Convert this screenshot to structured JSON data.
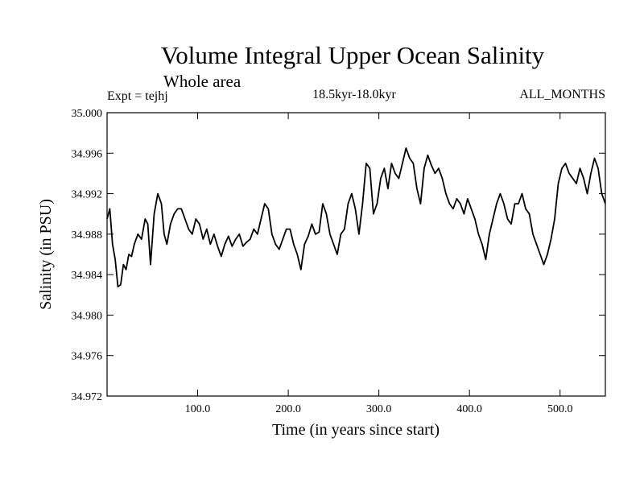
{
  "chart_data": {
    "type": "line",
    "title": "Volume Integral Upper Ocean Salinity",
    "subtitle": "Whole area",
    "left_label": "Expt = tejhj",
    "center_label": "18.5kyr-18.0kyr",
    "right_label": "ALL_MONTHS",
    "xlabel": "Time (in years since start)",
    "ylabel": "Salinity (in PSU)",
    "xlim": [
      0,
      550
    ],
    "ylim": [
      34.972,
      35.0
    ],
    "xticks": [
      100,
      200,
      300,
      400,
      500
    ],
    "xtick_labels": [
      "100.0",
      "200.0",
      "300.0",
      "400.0",
      "500.0"
    ],
    "yticks": [
      34.972,
      34.976,
      34.98,
      34.984,
      34.988,
      34.992,
      34.996,
      35.0
    ],
    "ytick_labels": [
      "34.972",
      "34.976",
      "34.980",
      "34.984",
      "34.988",
      "34.992",
      "34.996",
      "35.000"
    ],
    "grid": false,
    "series": [
      {
        "name": "salinity",
        "x": [
          0,
          3,
          6,
          9,
          12,
          15,
          18,
          21,
          24,
          27,
          30,
          34,
          38,
          42,
          45,
          48,
          52,
          56,
          60,
          63,
          66,
          70,
          74,
          78,
          82,
          86,
          90,
          94,
          98,
          102,
          106,
          110,
          114,
          118,
          122,
          126,
          130,
          134,
          138,
          142,
          146,
          150,
          154,
          158,
          162,
          166,
          170,
          174,
          178,
          182,
          186,
          190,
          194,
          198,
          202,
          206,
          210,
          214,
          218,
          222,
          226,
          230,
          234,
          238,
          242,
          246,
          250,
          254,
          258,
          262,
          266,
          270,
          274,
          278,
          282,
          286,
          290,
          294,
          298,
          302,
          306,
          310,
          314,
          318,
          322,
          326,
          330,
          334,
          338,
          342,
          346,
          350,
          354,
          358,
          362,
          366,
          370,
          374,
          378,
          382,
          386,
          390,
          394,
          398,
          402,
          406,
          410,
          414,
          418,
          422,
          426,
          430,
          434,
          438,
          442,
          446,
          450,
          454,
          458,
          462,
          466,
          470,
          474,
          478,
          482,
          486,
          490,
          494,
          498,
          502,
          506,
          510,
          514,
          518,
          522,
          526,
          530,
          534,
          538,
          542,
          546,
          550
        ],
        "values": [
          34.9895,
          34.9905,
          34.987,
          34.9855,
          34.9828,
          34.983,
          34.985,
          34.9845,
          34.986,
          34.9858,
          34.987,
          34.988,
          34.9875,
          34.9895,
          34.989,
          34.985,
          34.99,
          34.992,
          34.991,
          34.988,
          34.987,
          34.989,
          34.99,
          34.9905,
          34.9905,
          34.9895,
          34.9885,
          34.988,
          34.9895,
          34.989,
          34.9875,
          34.9885,
          34.987,
          34.988,
          34.9868,
          34.9858,
          34.987,
          34.9878,
          34.9868,
          34.9875,
          34.988,
          34.9868,
          34.9872,
          34.9875,
          34.9885,
          34.988,
          34.9895,
          34.991,
          34.9905,
          34.988,
          34.987,
          34.9865,
          34.9875,
          34.9885,
          34.9885,
          34.987,
          34.986,
          34.9845,
          34.987,
          34.9878,
          34.989,
          34.988,
          34.9882,
          34.991,
          34.99,
          34.988,
          34.987,
          34.986,
          34.988,
          34.9885,
          34.991,
          34.992,
          34.9905,
          34.988,
          34.991,
          34.995,
          34.9945,
          34.99,
          34.991,
          34.9935,
          34.9945,
          34.9925,
          34.995,
          34.994,
          34.9935,
          34.995,
          34.9965,
          34.9955,
          34.995,
          34.9925,
          34.991,
          34.9945,
          34.9958,
          34.9948,
          34.994,
          34.9945,
          34.9935,
          34.992,
          34.991,
          34.9905,
          34.9915,
          34.991,
          34.99,
          34.9915,
          34.9905,
          34.9895,
          34.988,
          34.987,
          34.9855,
          34.988,
          34.9895,
          34.991,
          34.992,
          34.991,
          34.9895,
          34.989,
          34.991,
          34.991,
          34.992,
          34.9905,
          34.99,
          34.988,
          34.987,
          34.986,
          34.985,
          34.986,
          34.9875,
          34.9895,
          34.993,
          34.9945,
          34.995,
          34.994,
          34.9935,
          34.993,
          34.9945,
          34.9935,
          34.992,
          34.994,
          34.9955,
          34.9945,
          34.992,
          34.991
        ]
      }
    ]
  }
}
